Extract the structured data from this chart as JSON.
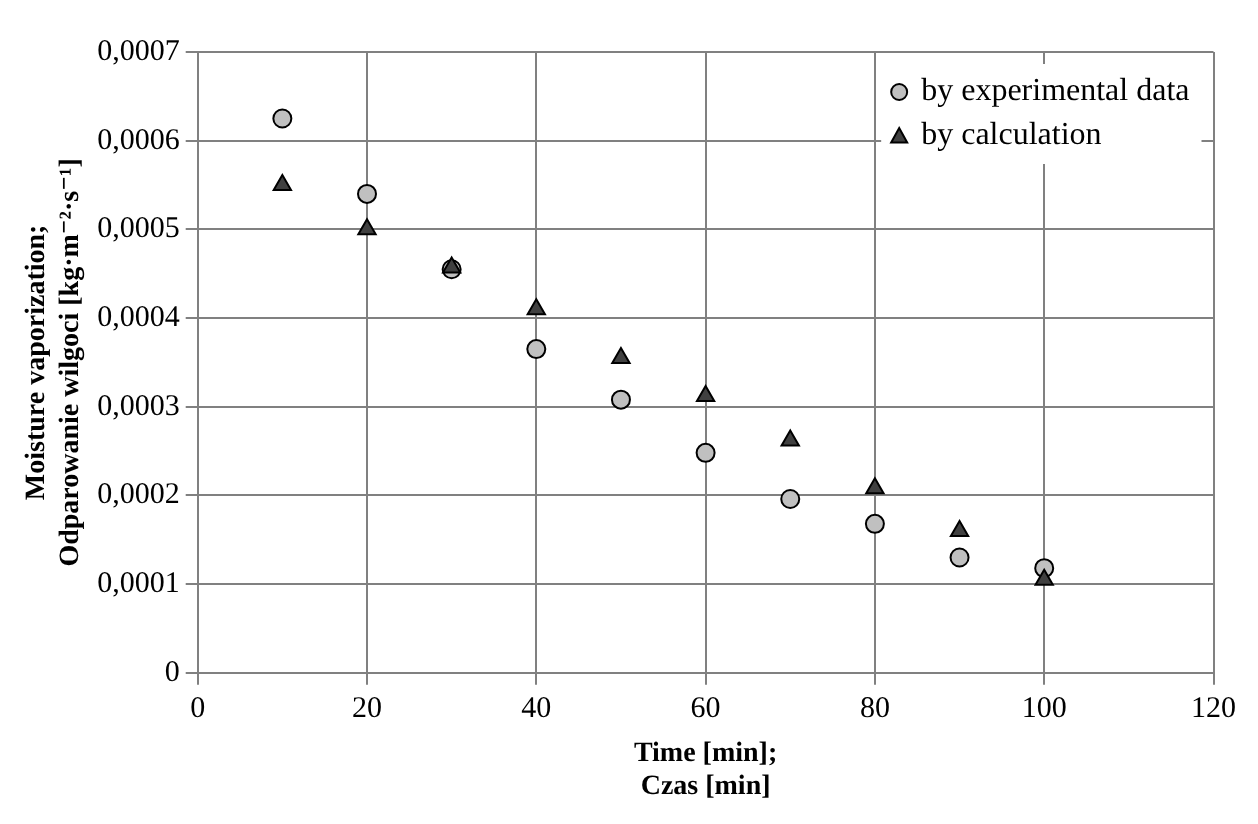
{
  "chart_data": {
    "type": "scatter",
    "xlabel": "Time [min];\nCzas [min]",
    "ylabel": "Moisture vaporization;\nOdparowanie wilgoci [kg·m⁻²·s⁻¹]",
    "x": [
      10,
      20,
      30,
      40,
      50,
      60,
      70,
      80,
      90,
      100
    ],
    "series": [
      {
        "name": "by experimental data",
        "color": "#c0c0c0",
        "marker": "circle",
        "values": [
          0.000625,
          0.00054,
          0.000455,
          0.000365,
          0.000308,
          0.000248,
          0.000196,
          0.000168,
          0.00013,
          0.000118
        ]
      },
      {
        "name": "by calculation",
        "color": "#404040",
        "marker": "triangle",
        "values": [
          0.00055,
          0.0005,
          0.000457,
          0.00041,
          0.000355,
          0.000312,
          0.000262,
          0.000208,
          0.00016,
          0.000105
        ]
      }
    ],
    "xlim": [
      0,
      120
    ],
    "xticks": [
      0,
      20,
      40,
      60,
      80,
      100,
      120
    ],
    "ylim": [
      0,
      0.0007
    ],
    "yticks": [
      {
        "value": 0,
        "label": "0"
      },
      {
        "value": 0.0001,
        "label": "0,0001"
      },
      {
        "value": 0.0002,
        "label": "0,0002"
      },
      {
        "value": 0.0003,
        "label": "0,0003"
      },
      {
        "value": 0.0004,
        "label": "0,0004"
      },
      {
        "value": 0.0005,
        "label": "0,0005"
      },
      {
        "value": 0.0006,
        "label": "0,0006"
      },
      {
        "value": 0.0007,
        "label": "0,0007"
      }
    ],
    "grid": true,
    "legend": "top right"
  }
}
